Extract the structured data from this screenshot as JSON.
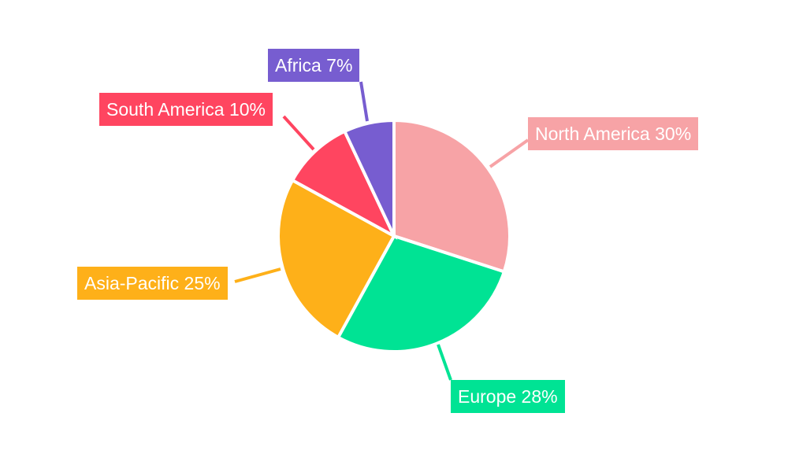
{
  "chart_data": {
    "type": "pie",
    "title": "",
    "categories": [
      "North America",
      "Europe",
      "Asia-Pacific",
      "South America",
      "Africa"
    ],
    "values": [
      30,
      28,
      25,
      10,
      7
    ],
    "colors": [
      "#f7a3a6",
      "#00e394",
      "#feb019",
      "#ff4560",
      "#775dd0"
    ],
    "labels": [
      "North America 30%",
      "Europe 28%",
      "Asia-Pacific 25%",
      "South America 10%",
      "Africa 7%"
    ],
    "start_angle": "12 o'clock, clockwise",
    "legend": "none"
  }
}
